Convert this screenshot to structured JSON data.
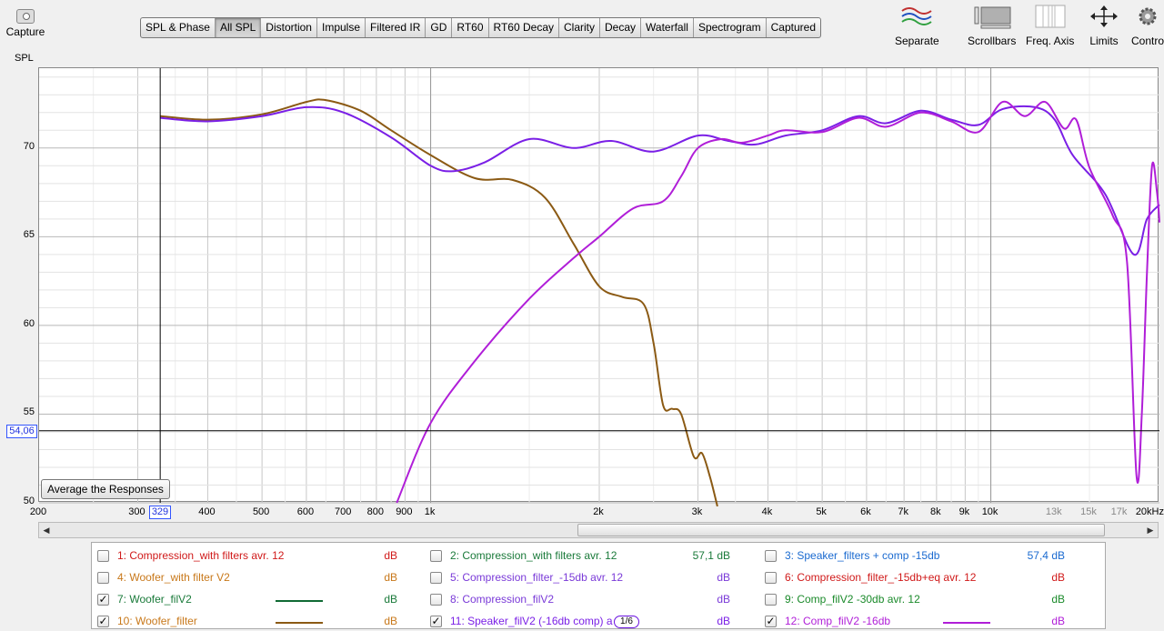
{
  "capture": {
    "label": "Capture"
  },
  "graph_label": "SPL",
  "tabs": [
    {
      "label": "SPL & Phase",
      "active": false
    },
    {
      "label": "All SPL",
      "active": true
    },
    {
      "label": "Distortion",
      "active": false
    },
    {
      "label": "Impulse",
      "active": false
    },
    {
      "label": "Filtered IR",
      "active": false
    },
    {
      "label": "GD",
      "active": false
    },
    {
      "label": "RT60",
      "active": false
    },
    {
      "label": "RT60 Decay",
      "active": false
    },
    {
      "label": "Clarity",
      "active": false
    },
    {
      "label": "Decay",
      "active": false
    },
    {
      "label": "Waterfall",
      "active": false
    },
    {
      "label": "Spectrogram",
      "active": false
    },
    {
      "label": "Captured",
      "active": false
    }
  ],
  "tools": {
    "separate": "Separate",
    "scrollbars": "Scrollbars",
    "freq_axis": "Freq. Axis",
    "limits": "Limits",
    "controls": "Controls"
  },
  "avg_button": "Average the Responses",
  "cursor": {
    "y_value": "54,06",
    "x_value": "329"
  },
  "chart_data": {
    "type": "line",
    "x_scale": "log",
    "xlim": [
      200,
      20000
    ],
    "ylim": [
      50,
      74.5
    ],
    "y_ticks": [
      "70",
      "65",
      "60",
      "55",
      "50"
    ],
    "x_ticks": [
      {
        "label": "200",
        "v": 200
      },
      {
        "label": "300",
        "v": 300
      },
      {
        "label": "400",
        "v": 400
      },
      {
        "label": "500",
        "v": 500
      },
      {
        "label": "600",
        "v": 600
      },
      {
        "label": "700",
        "v": 700
      },
      {
        "label": "800",
        "v": 800
      },
      {
        "label": "900",
        "v": 900
      },
      {
        "label": "1k",
        "v": 1000
      },
      {
        "label": "2k",
        "v": 2000
      },
      {
        "label": "3k",
        "v": 3000
      },
      {
        "label": "4k",
        "v": 4000
      },
      {
        "label": "5k",
        "v": 5000
      },
      {
        "label": "6k",
        "v": 6000
      },
      {
        "label": "7k",
        "v": 7000
      },
      {
        "label": "8k",
        "v": 8000
      },
      {
        "label": "9k",
        "v": 9000
      },
      {
        "label": "10k",
        "v": 10000
      },
      {
        "label": "13k",
        "v": 13000,
        "minor": true
      },
      {
        "label": "15k",
        "v": 15000,
        "minor": true
      },
      {
        "label": "17k",
        "v": 17000,
        "minor": true
      },
      {
        "label": "20kHz",
        "v": 20000
      }
    ],
    "cursor_y": 54.06,
    "cursor_x": 329,
    "series": [
      {
        "name": "10: Woofer_filter",
        "color": "#8b5a14",
        "points": [
          [
            329,
            71.8
          ],
          [
            400,
            71.6
          ],
          [
            500,
            71.9
          ],
          [
            600,
            72.6
          ],
          [
            650,
            72.7
          ],
          [
            750,
            72.1
          ],
          [
            850,
            71.0
          ],
          [
            1000,
            69.6
          ],
          [
            1200,
            68.3
          ],
          [
            1400,
            68.2
          ],
          [
            1600,
            67.2
          ],
          [
            1800,
            64.6
          ],
          [
            2000,
            62.2
          ],
          [
            2200,
            61.6
          ],
          [
            2400,
            61.2
          ],
          [
            2500,
            59.0
          ],
          [
            2600,
            55.5
          ],
          [
            2700,
            55.3
          ],
          [
            2800,
            55.0
          ],
          [
            2950,
            52.6
          ],
          [
            3050,
            52.8
          ],
          [
            3150,
            51.5
          ],
          [
            3250,
            49.8
          ]
        ]
      },
      {
        "name": "11: Speaker_filV2 (-16db comp)",
        "color": "#7a1fe6",
        "points": [
          [
            329,
            71.7
          ],
          [
            400,
            71.5
          ],
          [
            500,
            71.8
          ],
          [
            600,
            72.3
          ],
          [
            700,
            72.0
          ],
          [
            850,
            70.6
          ],
          [
            1000,
            69.0
          ],
          [
            1100,
            68.7
          ],
          [
            1250,
            69.2
          ],
          [
            1500,
            70.5
          ],
          [
            1800,
            70.0
          ],
          [
            2100,
            70.4
          ],
          [
            2500,
            69.8
          ],
          [
            3000,
            70.7
          ],
          [
            3400,
            70.4
          ],
          [
            3800,
            70.2
          ],
          [
            4300,
            70.7
          ],
          [
            5000,
            71.0
          ],
          [
            5800,
            71.8
          ],
          [
            6500,
            71.4
          ],
          [
            7500,
            72.1
          ],
          [
            8500,
            71.6
          ],
          [
            9500,
            71.3
          ],
          [
            10500,
            72.2
          ],
          [
            12000,
            72.3
          ],
          [
            13000,
            71.6
          ],
          [
            14000,
            69.6
          ],
          [
            16000,
            67.4
          ],
          [
            18000,
            64.0
          ],
          [
            19000,
            66.0
          ],
          [
            20000,
            66.8
          ]
        ]
      },
      {
        "name": "12: Comp_filV2 -16db",
        "color": "#b01ed8",
        "points": [
          [
            870,
            50.0
          ],
          [
            1000,
            54.5
          ],
          [
            1200,
            58.0
          ],
          [
            1500,
            61.5
          ],
          [
            1800,
            63.8
          ],
          [
            2000,
            65.0
          ],
          [
            2300,
            66.6
          ],
          [
            2600,
            67.0
          ],
          [
            2800,
            68.4
          ],
          [
            3000,
            70.0
          ],
          [
            3300,
            70.5
          ],
          [
            3600,
            70.3
          ],
          [
            4000,
            70.7
          ],
          [
            4300,
            71.0
          ],
          [
            5000,
            70.9
          ],
          [
            5800,
            71.7
          ],
          [
            6500,
            71.2
          ],
          [
            7500,
            72.0
          ],
          [
            8500,
            71.5
          ],
          [
            9500,
            70.9
          ],
          [
            10500,
            72.6
          ],
          [
            11500,
            71.8
          ],
          [
            12500,
            72.6
          ],
          [
            13500,
            71.1
          ],
          [
            14200,
            71.6
          ],
          [
            15000,
            68.9
          ],
          [
            16500,
            66.2
          ],
          [
            17500,
            63.6
          ],
          [
            18200,
            51.5
          ],
          [
            18600,
            55.0
          ],
          [
            19000,
            63.0
          ],
          [
            19400,
            69.0
          ],
          [
            19800,
            67.5
          ],
          [
            20000,
            65.8
          ]
        ]
      }
    ]
  },
  "legend": [
    {
      "name": "1: Compression_with filters avr. 12",
      "color": "#d01a1a",
      "checked": false,
      "value": "dB",
      "value_color": "#d01a1a"
    },
    {
      "name": "2: Compression_with filters avr. 12",
      "color": "#1a7a3a",
      "checked": false,
      "value": "57,1 dB",
      "value_color": "#1a7a3a"
    },
    {
      "name": "3: Speaker_filters + comp -15db",
      "color": "#1a6ad0",
      "checked": false,
      "value": "57,4 dB",
      "value_color": "#1a6ad0"
    },
    {
      "name": "4: Woofer_with filter V2",
      "color": "#c8781a",
      "checked": false,
      "value": "dB",
      "value_color": "#c8781a"
    },
    {
      "name": "5: Compression_filter_-15db avr. 12",
      "color": "#7a3ad8",
      "checked": false,
      "value": "dB",
      "value_color": "#7a3ad8"
    },
    {
      "name": "6: Compression_filter_-15db+eq avr. 12",
      "color": "#d01a1a",
      "checked": false,
      "value": "dB",
      "value_color": "#d01a1a"
    },
    {
      "name": "7: Woofer_filV2",
      "color": "#1a7a3a",
      "checked": true,
      "value": "dB",
      "value_color": "#1a7a3a",
      "line": "#106a34"
    },
    {
      "name": "8: Compression_filV2",
      "color": "#7a3ad8",
      "checked": false,
      "value": "dB",
      "value_color": "#7a3ad8"
    },
    {
      "name": "9: Comp_filV2 -30db avr. 12",
      "color": "#1a8a2a",
      "checked": false,
      "value": "dB",
      "value_color": "#1a8a2a"
    },
    {
      "name": "10: Woofer_filter",
      "color": "#c8781a",
      "checked": true,
      "value": "dB",
      "value_color": "#c8781a",
      "line": "#8b5a14"
    },
    {
      "name": "11: Speaker_filV2 (-16db comp) a",
      "color": "#7a1fe6",
      "checked": true,
      "value": "dB",
      "value_color": "#7a1fe6",
      "smoothing": "1/6"
    },
    {
      "name": "12: Comp_filV2 -16db",
      "color": "#b01ed8",
      "checked": true,
      "value": "dB",
      "value_color": "#b01ed8",
      "line": "#b01ed8"
    }
  ]
}
